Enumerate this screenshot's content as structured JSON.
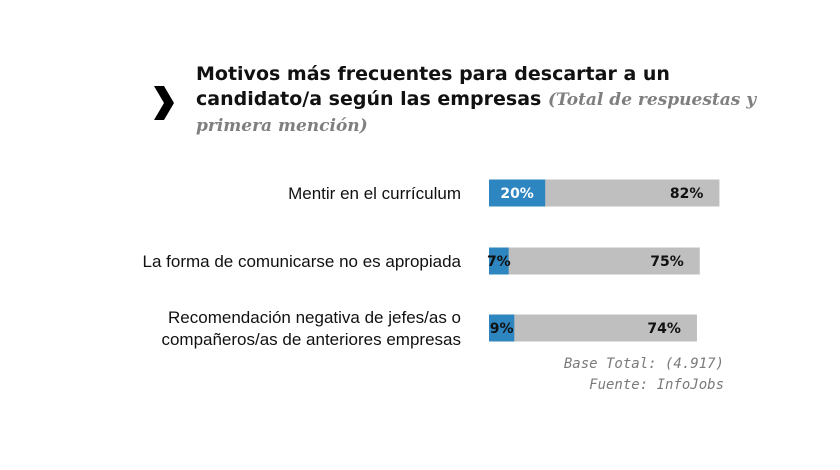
{
  "chart_data": {
    "type": "bar",
    "title": "Motivos más frecuentes para descartar a un candidato/a según las empresas",
    "subtitle": "(Total de respuestas y primera mención)",
    "categories": [
      [
        "Mentir en el currículum"
      ],
      [
        "La forma de comunicarse no es apropiada"
      ],
      [
        "Recomendación negativa de jefes/as o",
        "compañeros/as de anteriores empresas"
      ]
    ],
    "series": [
      {
        "name": "",
        "values": [
          82,
          75,
          74
        ],
        "labels": [
          "82%",
          "75%",
          "74%"
        ],
        "color": "#bfbfbf"
      },
      {
        "name": "",
        "values": [
          20,
          7,
          9
        ],
        "labels": [
          "20%",
          "7%",
          "9%"
        ],
        "color": "#2e86c1"
      }
    ],
    "xlim": [
      0,
      100
    ],
    "grid": false,
    "legend": "none"
  },
  "footnote": {
    "base": "Base Total: (4.917)",
    "source": "Fuente: InfoJobs"
  },
  "icons": {
    "bullet": "chevron-right-icon"
  },
  "colors": {
    "first_mention": "#2e86c1",
    "total": "#bfbfbf",
    "title": "#111111",
    "subtitle": "#7f7f7f"
  }
}
